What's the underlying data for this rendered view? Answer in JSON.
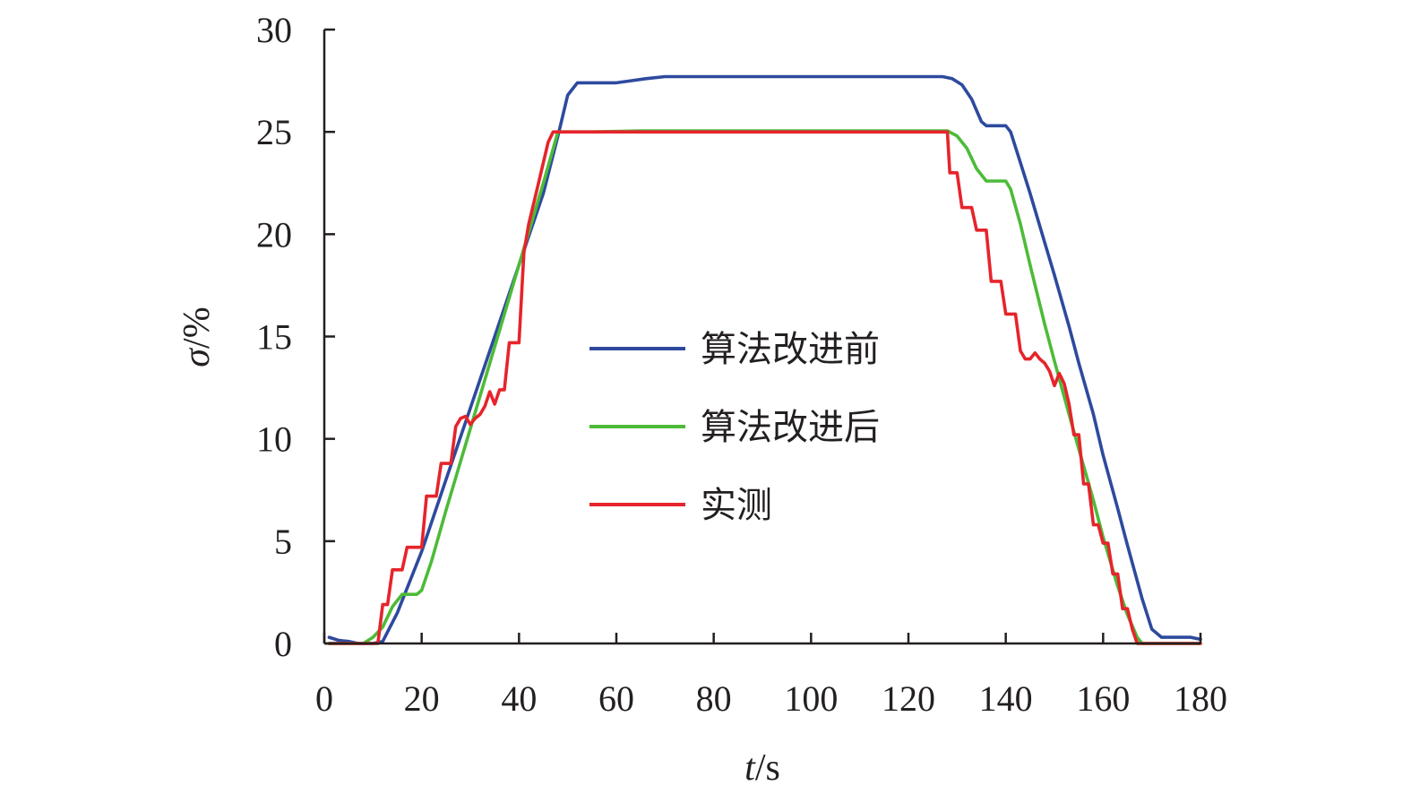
{
  "chart_data": {
    "type": "line",
    "xlabel": {
      "var": "t",
      "unit": "/s"
    },
    "ylabel": {
      "var": "σ",
      "unit": "/%"
    },
    "xlim": [
      0,
      180
    ],
    "ylim": [
      0,
      30
    ],
    "xticks": [
      0,
      20,
      40,
      60,
      80,
      100,
      120,
      140,
      160,
      180
    ],
    "yticks": [
      0,
      5,
      10,
      15,
      20,
      25,
      30
    ],
    "grid": false,
    "legend_position": "center",
    "series": [
      {
        "name": "算法改进前",
        "color": "#2e4a9e",
        "points": [
          [
            1,
            0.3
          ],
          [
            3,
            0.15
          ],
          [
            5,
            0.1
          ],
          [
            7,
            0.0
          ],
          [
            10,
            0.0
          ],
          [
            12,
            0.1
          ],
          [
            15,
            1.5
          ],
          [
            20,
            4.5
          ],
          [
            25,
            8.0
          ],
          [
            30,
            11.5
          ],
          [
            35,
            15.0
          ],
          [
            40,
            18.5
          ],
          [
            45,
            22.0
          ],
          [
            48,
            24.8
          ],
          [
            50,
            26.8
          ],
          [
            52,
            27.4
          ],
          [
            55,
            27.4
          ],
          [
            60,
            27.4
          ],
          [
            63,
            27.5
          ],
          [
            66,
            27.6
          ],
          [
            70,
            27.7
          ],
          [
            90,
            27.7
          ],
          [
            110,
            27.7
          ],
          [
            127,
            27.7
          ],
          [
            129,
            27.6
          ],
          [
            131,
            27.3
          ],
          [
            133,
            26.6
          ],
          [
            135,
            25.5
          ],
          [
            136,
            25.3
          ],
          [
            138,
            25.3
          ],
          [
            140,
            25.3
          ],
          [
            141,
            25.0
          ],
          [
            143,
            23.5
          ],
          [
            145,
            22.0
          ],
          [
            148,
            19.6
          ],
          [
            150,
            18.0
          ],
          [
            153,
            15.5
          ],
          [
            155,
            13.7
          ],
          [
            158,
            11.2
          ],
          [
            160,
            9.2
          ],
          [
            163,
            6.6
          ],
          [
            165,
            4.8
          ],
          [
            168,
            2.2
          ],
          [
            170,
            0.7
          ],
          [
            172,
            0.3
          ],
          [
            175,
            0.3
          ],
          [
            178,
            0.3
          ],
          [
            180,
            0.2
          ]
        ]
      },
      {
        "name": "算法改进后",
        "color": "#4dbb38",
        "points": [
          [
            1,
            0.0
          ],
          [
            5,
            0.0
          ],
          [
            8,
            0.0
          ],
          [
            10,
            0.3
          ],
          [
            12,
            0.8
          ],
          [
            14,
            1.8
          ],
          [
            16,
            2.4
          ],
          [
            19,
            2.4
          ],
          [
            20,
            2.6
          ],
          [
            22,
            4.0
          ],
          [
            25,
            6.5
          ],
          [
            30,
            10.5
          ],
          [
            35,
            14.5
          ],
          [
            40,
            18.5
          ],
          [
            45,
            22.5
          ],
          [
            48,
            25.0
          ],
          [
            55,
            25.0
          ],
          [
            65,
            25.05
          ],
          [
            80,
            25.05
          ],
          [
            100,
            25.05
          ],
          [
            120,
            25.05
          ],
          [
            128,
            25.05
          ],
          [
            130,
            24.8
          ],
          [
            132,
            24.2
          ],
          [
            134,
            23.2
          ],
          [
            136,
            22.6
          ],
          [
            138,
            22.6
          ],
          [
            140,
            22.6
          ],
          [
            141,
            22.2
          ],
          [
            143,
            20.5
          ],
          [
            145,
            18.5
          ],
          [
            148,
            15.6
          ],
          [
            150,
            13.8
          ],
          [
            153,
            11.2
          ],
          [
            155,
            9.5
          ],
          [
            158,
            7.0
          ],
          [
            160,
            5.2
          ],
          [
            163,
            2.8
          ],
          [
            165,
            1.4
          ],
          [
            167,
            0.3
          ],
          [
            168,
            0.0
          ],
          [
            170,
            0.0
          ],
          [
            175,
            0.0
          ],
          [
            180,
            0.0
          ]
        ]
      },
      {
        "name": "实测",
        "color": "#e6242b",
        "points": [
          [
            1,
            0.0
          ],
          [
            5,
            0.0
          ],
          [
            10,
            0.0
          ],
          [
            11,
            0.0
          ],
          [
            12,
            1.9
          ],
          [
            13,
            1.9
          ],
          [
            14,
            3.6
          ],
          [
            16,
            3.6
          ],
          [
            17,
            4.7
          ],
          [
            20,
            4.7
          ],
          [
            21,
            7.2
          ],
          [
            23,
            7.2
          ],
          [
            24,
            8.8
          ],
          [
            26,
            8.8
          ],
          [
            27,
            10.6
          ],
          [
            28,
            11.0
          ],
          [
            29,
            11.1
          ],
          [
            30,
            10.7
          ],
          [
            31,
            11.0
          ],
          [
            32,
            11.2
          ],
          [
            33,
            11.6
          ],
          [
            34,
            12.3
          ],
          [
            35,
            11.7
          ],
          [
            36,
            12.4
          ],
          [
            37,
            12.4
          ],
          [
            38,
            14.7
          ],
          [
            40,
            14.7
          ],
          [
            41,
            19.1
          ],
          [
            42,
            20.5
          ],
          [
            44,
            22.5
          ],
          [
            46,
            24.5
          ],
          [
            47,
            25.0
          ],
          [
            50,
            25.0
          ],
          [
            60,
            25.0
          ],
          [
            80,
            25.0
          ],
          [
            100,
            25.0
          ],
          [
            120,
            25.0
          ],
          [
            128,
            25.0
          ],
          [
            128.5,
            23.0
          ],
          [
            130,
            23.0
          ],
          [
            131,
            21.3
          ],
          [
            133,
            21.3
          ],
          [
            134,
            20.2
          ],
          [
            136,
            20.2
          ],
          [
            137,
            17.7
          ],
          [
            139,
            17.7
          ],
          [
            140,
            16.1
          ],
          [
            142,
            16.1
          ],
          [
            143,
            14.3
          ],
          [
            144,
            13.9
          ],
          [
            145,
            13.9
          ],
          [
            146,
            14.2
          ],
          [
            147,
            13.9
          ],
          [
            148,
            13.7
          ],
          [
            149,
            13.3
          ],
          [
            150,
            12.6
          ],
          [
            151,
            13.2
          ],
          [
            152,
            12.7
          ],
          [
            153,
            11.7
          ],
          [
            154,
            10.2
          ],
          [
            155,
            10.2
          ],
          [
            156,
            7.8
          ],
          [
            157,
            7.8
          ],
          [
            158,
            5.8
          ],
          [
            159,
            5.8
          ],
          [
            160,
            4.9
          ],
          [
            161,
            4.9
          ],
          [
            162,
            3.4
          ],
          [
            163,
            3.4
          ],
          [
            164,
            1.7
          ],
          [
            165,
            1.7
          ],
          [
            166,
            0.7
          ],
          [
            167,
            0.0
          ],
          [
            170,
            0.0
          ],
          [
            175,
            0.0
          ],
          [
            180,
            0.0
          ]
        ]
      }
    ]
  }
}
